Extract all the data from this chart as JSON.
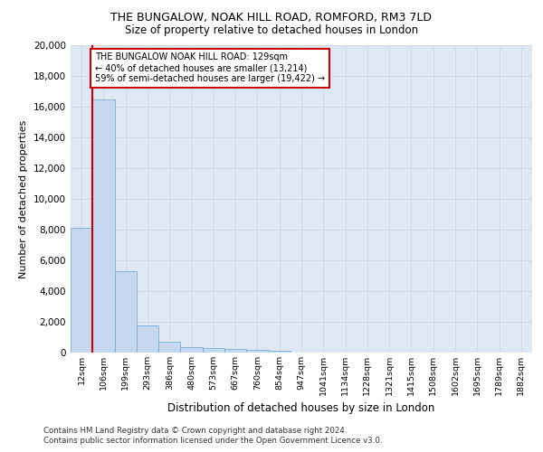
{
  "title1": "THE BUNGALOW, NOAK HILL ROAD, ROMFORD, RM3 7LD",
  "title2": "Size of property relative to detached houses in London",
  "xlabel": "Distribution of detached houses by size in London",
  "ylabel": "Number of detached properties",
  "categories": [
    "12sqm",
    "106sqm",
    "199sqm",
    "293sqm",
    "386sqm",
    "480sqm",
    "573sqm",
    "667sqm",
    "760sqm",
    "854sqm",
    "947sqm",
    "1041sqm",
    "1134sqm",
    "1228sqm",
    "1321sqm",
    "1415sqm",
    "1508sqm",
    "1602sqm",
    "1695sqm",
    "1789sqm",
    "1882sqm"
  ],
  "bar_values": [
    8100,
    16500,
    5300,
    1750,
    700,
    350,
    270,
    230,
    180,
    130,
    0,
    0,
    0,
    0,
    0,
    0,
    0,
    0,
    0,
    0,
    0
  ],
  "bar_color": "#c5d8f0",
  "bar_edge_color": "#7aadd4",
  "annotation_line1": "THE BUNGALOW NOAK HILL ROAD: 129sqm",
  "annotation_line2": "← 40% of detached houses are smaller (13,214)",
  "annotation_line3": "59% of semi-detached houses are larger (19,422) →",
  "annotation_box_color": "#ffffff",
  "annotation_box_edge_color": "#cc0000",
  "vline_color": "#cc0000",
  "ylim": [
    0,
    20000
  ],
  "yticks": [
    0,
    2000,
    4000,
    6000,
    8000,
    10000,
    12000,
    14000,
    16000,
    18000,
    20000
  ],
  "grid_color": "#d0d8e8",
  "bg_color": "#dde8f4",
  "footnote1": "Contains HM Land Registry data © Crown copyright and database right 2024.",
  "footnote2": "Contains public sector information licensed under the Open Government Licence v3.0."
}
